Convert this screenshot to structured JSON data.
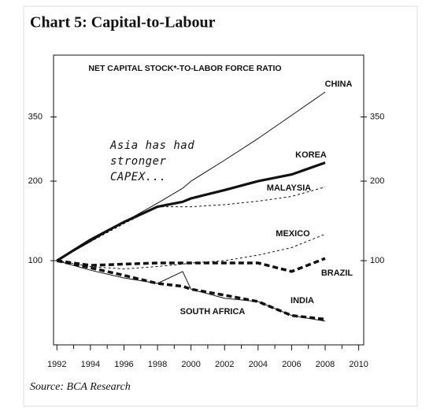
{
  "chart_data": {
    "type": "line",
    "title": "Chart 5:   Capital-to-Labour",
    "subtitle": "NET CAPITAL STOCK*-TO-LABOR FORCE RATIO",
    "annotation": [
      "Asia has had",
      "stronger",
      "CAPEX..."
    ],
    "source": "Source: BCA Research",
    "x": [
      1992,
      1994,
      1996,
      1998,
      1999.5,
      2000,
      2002,
      2004,
      2006,
      2008
    ],
    "series": [
      {
        "name": "CHINA",
        "color": "#111111",
        "values": [
          100,
          118,
          140,
          165,
          188,
          200,
          240,
          290,
          355,
          435
        ]
      },
      {
        "name": "KOREA",
        "color": "#111111",
        "values": [
          100,
          120,
          140,
          160,
          167,
          172,
          185,
          200,
          212,
          235
        ]
      },
      {
        "name": "MALAYSIA",
        "color": "#111111",
        "values": [
          100,
          118,
          138,
          160,
          160,
          160,
          163,
          168,
          175,
          190
        ]
      },
      {
        "name": "MEXICO",
        "color": "#111111",
        "values": [
          100,
          95,
          93,
          95,
          97,
          98,
          100,
          105,
          112,
          126
        ]
      },
      {
        "name": "BRAZIL",
        "color": "#111111",
        "values": [
          100,
          96,
          97,
          98,
          98,
          98,
          98,
          98,
          91,
          102
        ]
      },
      {
        "name": "INDIA",
        "color": "#111111",
        "values": [
          100,
          94,
          88,
          82,
          80,
          78,
          74,
          70,
          62,
          60
        ]
      },
      {
        "name": "SOUTH AFRICA",
        "color": "#111111",
        "values": [
          100,
          92,
          86,
          82,
          91,
          78,
          72,
          70,
          62,
          59
        ]
      }
    ],
    "xlim": [
      1991.8,
      2010.3
    ],
    "xticks": [
      1992,
      1994,
      1996,
      1998,
      2000,
      2002,
      2004,
      2006,
      2008,
      2010
    ],
    "ylim": [
      48,
      600
    ],
    "yticks": [
      100,
      200,
      350
    ],
    "log_scale": true,
    "grid": false
  }
}
